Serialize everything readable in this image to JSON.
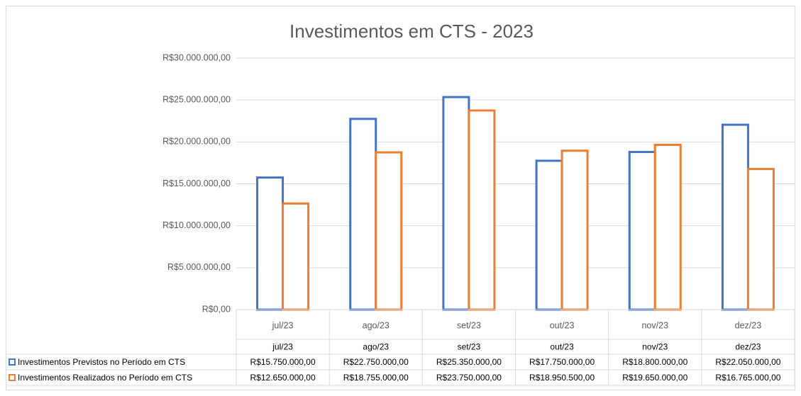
{
  "chart_data": {
    "type": "bar",
    "title": "Investimentos em CTS - 2023",
    "categories": [
      "jul/23",
      "ago/23",
      "set/23",
      "out/23",
      "nov/23",
      "dez/23"
    ],
    "series": [
      {
        "name": "Investimentos Previstos no Período em CTS",
        "color": "#4472c4",
        "values": [
          15750000,
          22750000,
          25350000,
          17750000,
          18800000,
          22050000
        ],
        "value_labels": [
          "R$15.750.000,00",
          "R$22.750.000,00",
          "R$25.350.000,00",
          "R$17.750.000,00",
          "R$18.800.000,00",
          "R$22.050.000,00"
        ]
      },
      {
        "name": "Investimentos Realizados no Período em CTS",
        "color": "#ed7d31",
        "values": [
          12650000,
          18755000,
          23750000,
          18950500,
          19650000,
          16765000
        ],
        "value_labels": [
          "R$12.650.000,00",
          "R$18.755.000,00",
          "R$23.750.000,00",
          "R$18.950.500,00",
          "R$19.650.000,00",
          "R$16.765.000,00"
        ]
      }
    ],
    "ylim": [
      0,
      30000000
    ],
    "yticks": [
      {
        "value": 0,
        "label": "R$0,00"
      },
      {
        "value": 5000000,
        "label": "R$5.000.000,00"
      },
      {
        "value": 10000000,
        "label": "R$10.000.000,00"
      },
      {
        "value": 15000000,
        "label": "R$15.000.000,00"
      },
      {
        "value": 20000000,
        "label": "R$20.000.000,00"
      },
      {
        "value": 25000000,
        "label": "R$25.000.000,00"
      },
      {
        "value": 30000000,
        "label": "R$30.000.000,00"
      }
    ],
    "grid": true
  }
}
